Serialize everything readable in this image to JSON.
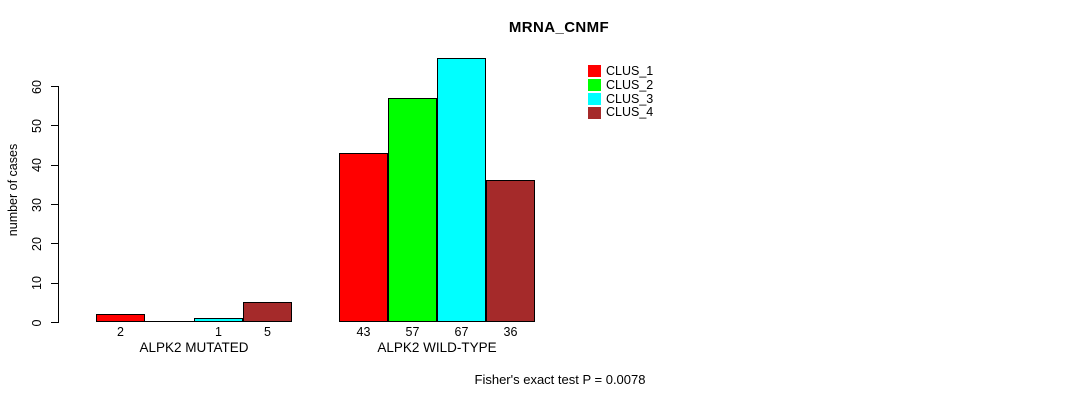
{
  "title": "MRNA_CNMF",
  "chart_data": {
    "type": "bar",
    "title": "MRNA_CNMF",
    "xlabel": "",
    "ylabel": "number of cases",
    "ylim": [
      0,
      60
    ],
    "yticks": [
      0,
      10,
      20,
      30,
      40,
      50,
      60
    ],
    "grid": false,
    "legend_position": "top-right",
    "categories": [
      "ALPK2 MUTATED",
      "ALPK2 WILD-TYPE"
    ],
    "series": [
      {
        "name": "CLUS_1",
        "color": "#ff0000",
        "values": [
          2,
          43
        ]
      },
      {
        "name": "CLUS_2",
        "color": "#00ff00",
        "values": [
          0,
          57
        ]
      },
      {
        "name": "CLUS_3",
        "color": "#00ffff",
        "values": [
          1,
          67
        ]
      },
      {
        "name": "CLUS_4",
        "color": "#a52a2a",
        "values": [
          5,
          36
        ]
      }
    ],
    "bar_labels": [
      [
        "2",
        "",
        "1",
        "5"
      ],
      [
        "43",
        "57",
        "67",
        "36"
      ]
    ],
    "footnote": "Fisher's exact test P = 0.0078",
    "colors": {
      "axis": "#000000",
      "background": "#ffffff",
      "text": "#000000"
    }
  }
}
